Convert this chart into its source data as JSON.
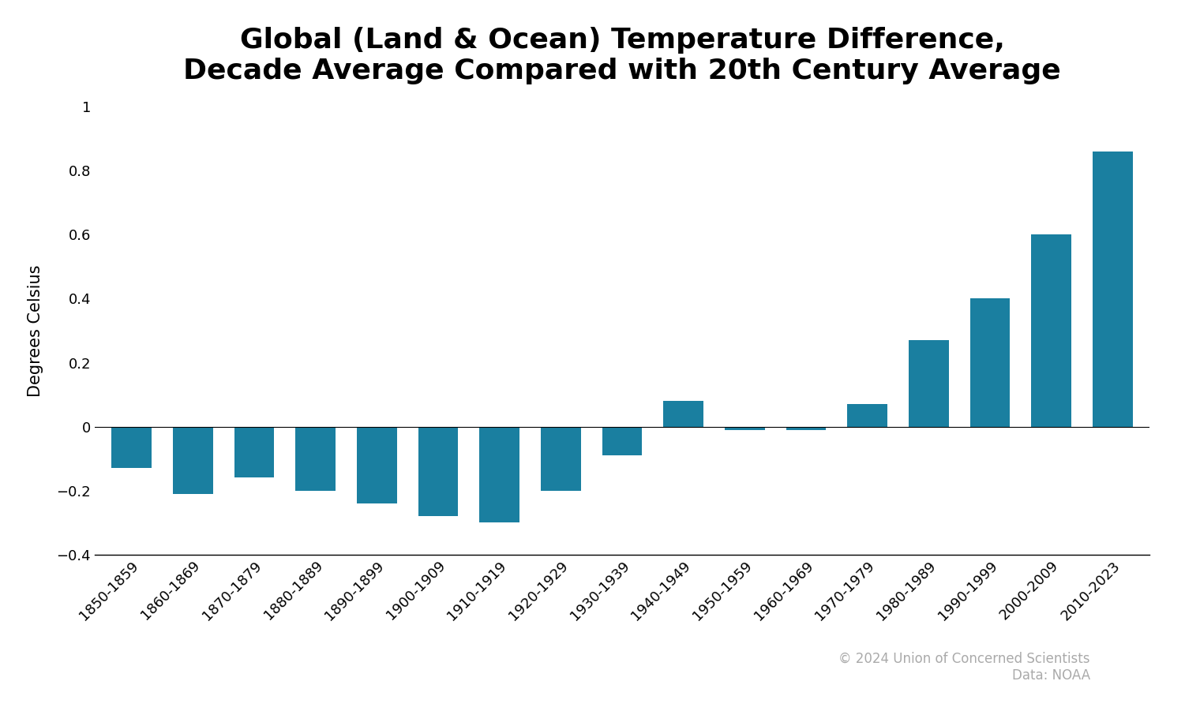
{
  "title": "Global (Land & Ocean) Temperature Difference,\nDecade Average Compared with 20th Century Average",
  "ylabel": "Degrees Celsius",
  "copyright": "© 2024 Union of Concerned Scientists\nData: NOAA",
  "categories": [
    "1850-1859",
    "1860-1869",
    "1870-1879",
    "1880-1889",
    "1890-1899",
    "1900-1909",
    "1910-1919",
    "1920-1929",
    "1930-1939",
    "1940-1949",
    "1950-1959",
    "1960-1969",
    "1970-1979",
    "1980-1989",
    "1990-1999",
    "2000-2009",
    "2010-2023"
  ],
  "values": [
    -0.13,
    -0.21,
    -0.16,
    -0.2,
    -0.24,
    -0.28,
    -0.3,
    -0.2,
    -0.09,
    0.08,
    -0.01,
    -0.01,
    0.07,
    0.27,
    0.4,
    0.6,
    0.86
  ],
  "bar_color": "#1a7fa0",
  "background_color": "#ffffff",
  "ylim": [
    -0.4,
    1.0
  ],
  "yticks": [
    -0.4,
    -0.2,
    0.0,
    0.2,
    0.4,
    0.6,
    0.8,
    1.0
  ],
  "title_fontsize": 26,
  "ylabel_fontsize": 15,
  "tick_fontsize": 13,
  "copyright_fontsize": 12
}
